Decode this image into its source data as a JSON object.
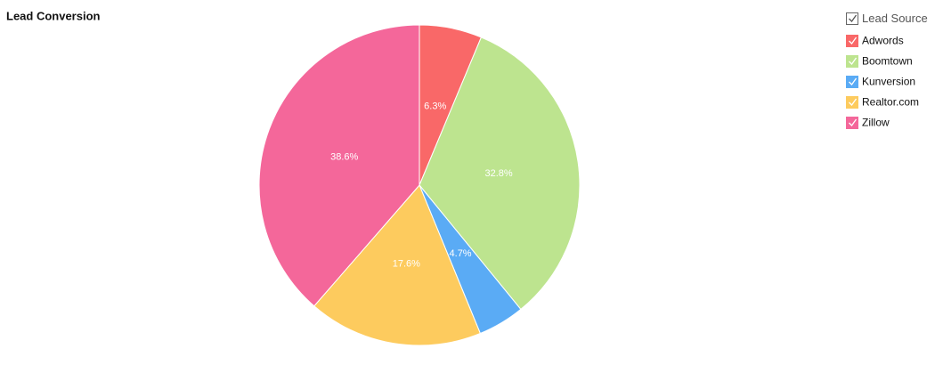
{
  "chart_data": {
    "type": "pie",
    "title": "Lead Conversion",
    "legend_title": "Lead Source",
    "categories": [
      "Adwords",
      "Boomtown",
      "Kunversion",
      "Realtor.com",
      "Zillow"
    ],
    "values": [
      6.3,
      32.8,
      4.7,
      17.6,
      38.6
    ],
    "value_labels": [
      "6.3%",
      "32.8%",
      "4.7%",
      "17.6%",
      "38.6%"
    ],
    "colors": [
      "#f96868",
      "#bde48f",
      "#5aabf5",
      "#fdcb5e",
      "#f4679a"
    ],
    "legend": "top-right"
  }
}
